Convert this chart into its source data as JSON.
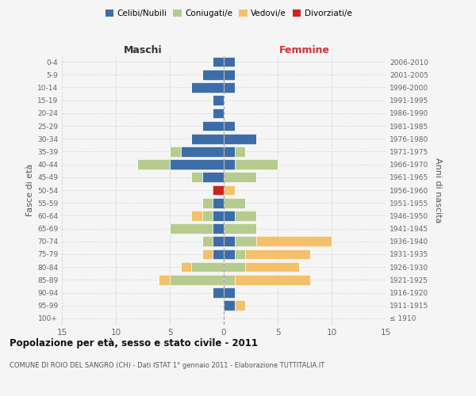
{
  "age_groups": [
    "100+",
    "95-99",
    "90-94",
    "85-89",
    "80-84",
    "75-79",
    "70-74",
    "65-69",
    "60-64",
    "55-59",
    "50-54",
    "45-49",
    "40-44",
    "35-39",
    "30-34",
    "25-29",
    "20-24",
    "15-19",
    "10-14",
    "5-9",
    "0-4"
  ],
  "birth_years": [
    "≤ 1910",
    "1911-1915",
    "1916-1920",
    "1921-1925",
    "1926-1930",
    "1931-1935",
    "1936-1940",
    "1941-1945",
    "1946-1950",
    "1951-1955",
    "1956-1960",
    "1961-1965",
    "1966-1970",
    "1971-1975",
    "1976-1980",
    "1981-1985",
    "1986-1990",
    "1991-1995",
    "1996-2000",
    "2001-2005",
    "2006-2010"
  ],
  "maschi": {
    "celibi": [
      0,
      0,
      1,
      0,
      0,
      1,
      1,
      1,
      1,
      1,
      0,
      2,
      5,
      4,
      3,
      2,
      1,
      1,
      3,
      2,
      1
    ],
    "coniugati": [
      0,
      0,
      0,
      5,
      3,
      0,
      1,
      4,
      1,
      1,
      0,
      1,
      3,
      1,
      0,
      0,
      0,
      0,
      0,
      0,
      0
    ],
    "vedovi": [
      0,
      0,
      0,
      1,
      1,
      1,
      0,
      0,
      1,
      0,
      0,
      0,
      0,
      0,
      0,
      0,
      0,
      0,
      0,
      0,
      0
    ],
    "divorziati": [
      0,
      0,
      0,
      0,
      0,
      0,
      0,
      0,
      0,
      0,
      1,
      0,
      0,
      0,
      0,
      0,
      0,
      0,
      0,
      0,
      0
    ]
  },
  "femmine": {
    "nubili": [
      0,
      1,
      1,
      0,
      0,
      1,
      1,
      0,
      1,
      0,
      0,
      0,
      1,
      1,
      3,
      1,
      0,
      0,
      1,
      1,
      1
    ],
    "coniugate": [
      0,
      0,
      0,
      1,
      2,
      1,
      2,
      3,
      2,
      2,
      0,
      3,
      4,
      1,
      0,
      0,
      0,
      0,
      0,
      0,
      0
    ],
    "vedove": [
      0,
      1,
      0,
      7,
      5,
      6,
      7,
      0,
      0,
      0,
      1,
      0,
      0,
      0,
      0,
      0,
      0,
      0,
      0,
      0,
      0
    ],
    "divorziate": [
      0,
      0,
      0,
      0,
      0,
      0,
      0,
      0,
      0,
      0,
      0,
      0,
      0,
      0,
      0,
      0,
      0,
      0,
      0,
      0,
      0
    ]
  },
  "colors": {
    "celibi": "#3d6da8",
    "coniugati": "#b5cc8e",
    "vedovi": "#f5c06a",
    "divorziati": "#cc2222"
  },
  "xlim": [
    -15,
    15
  ],
  "title": "Popolazione per età, sesso e stato civile - 2011",
  "subtitle": "COMUNE DI ROIO DEL SANGRO (CH) - Dati ISTAT 1° gennaio 2011 - Elaborazione TUTTITALIA.IT",
  "ylabel_left": "Fasce di età",
  "ylabel_right": "Anni di nascita",
  "xlabel_left": "Maschi",
  "xlabel_right": "Femmine",
  "bg_color": "#f5f5f5",
  "grid_color": "#cccccc",
  "legend_labels": [
    "Celibi/Nubili",
    "Coniugati/e",
    "Vedovi/e",
    "Divorziati/e"
  ]
}
